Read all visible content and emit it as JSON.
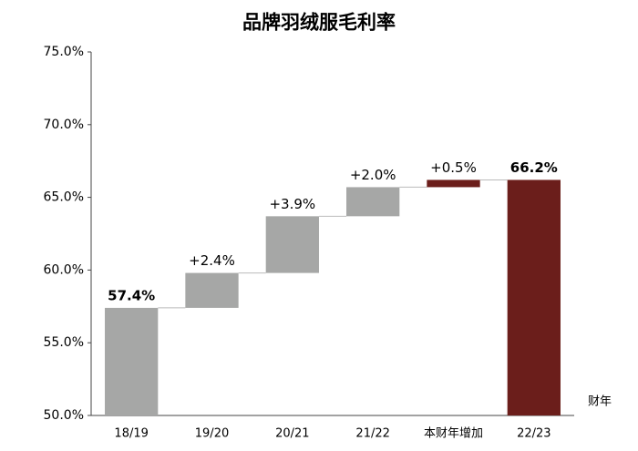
{
  "chart_data": {
    "type": "waterfall",
    "title": "品牌羽绒服毛利率",
    "categories": [
      "18/19",
      "19/20",
      "20/21",
      "21/22",
      "本财年增加",
      "22/23"
    ],
    "values": [
      57.4,
      2.4,
      3.9,
      2.0,
      0.5,
      66.2
    ],
    "value_labels": [
      "57.4%",
      "+2.4%",
      "+3.9%",
      "+2.0%",
      "+0.5%",
      "66.2%"
    ],
    "measure": [
      "absolute",
      "relative",
      "relative",
      "relative",
      "relative",
      "total"
    ],
    "colors": [
      "#a6a7a6",
      "#a6a7a6",
      "#a6a7a6",
      "#a6a7a6",
      "#6b1e1b",
      "#6b1e1b"
    ],
    "label_colors": [
      "#000000",
      "#000000",
      "#000000",
      "#000000",
      "#000000",
      "#a31515"
    ],
    "x_label": "财年",
    "ylim": [
      50,
      75
    ],
    "yticks": [
      {
        "value": 50,
        "label": "50.0%"
      },
      {
        "value": 55,
        "label": "55.0%"
      },
      {
        "value": 60,
        "label": "60.0%"
      },
      {
        "value": 65,
        "label": "65.0%"
      },
      {
        "value": 70,
        "label": "70.0%"
      },
      {
        "value": 75,
        "label": "75.0%"
      }
    ],
    "grid": false
  }
}
